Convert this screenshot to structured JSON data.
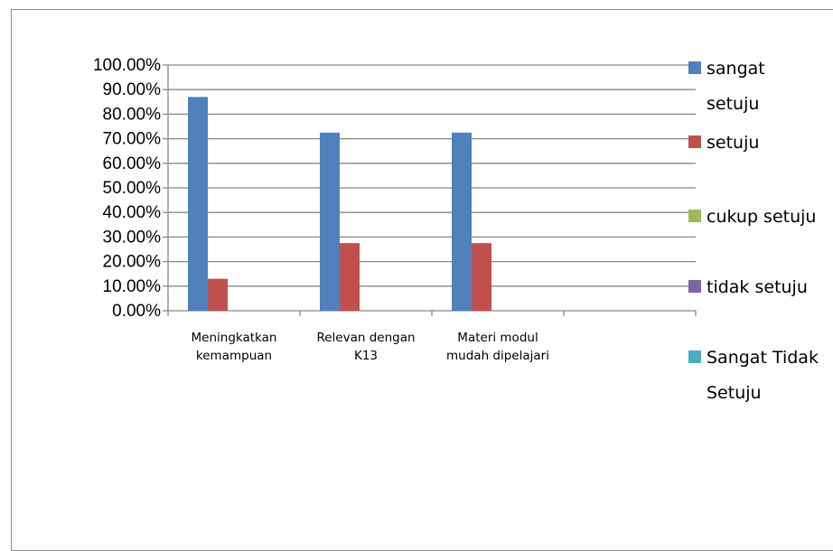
{
  "chart_data": {
    "type": "bar",
    "categories": [
      [
        "Meningkatkan",
        "kemampuan"
      ],
      [
        "Relevan dengan",
        "K13"
      ],
      [
        "Materi modul",
        "mudah dipelajari"
      ],
      [
        ""
      ]
    ],
    "series": [
      {
        "name": [
          "sangat",
          "setuju"
        ],
        "color": "#4f81bd",
        "values": [
          0.87,
          0.725,
          0.725,
          null
        ]
      },
      {
        "name": [
          "setuju"
        ],
        "color": "#c0504d",
        "values": [
          0.13,
          0.275,
          0.275,
          null
        ]
      },
      {
        "name": [
          "cukup setuju"
        ],
        "color": "#9bbb59",
        "values": [
          0,
          0,
          0,
          null
        ]
      },
      {
        "name": [
          "tidak setuju"
        ],
        "color": "#8064a2",
        "values": [
          0,
          0,
          0,
          null
        ]
      },
      {
        "name": [
          "Sangat Tidak",
          "Setuju"
        ],
        "color": "#4bacc6",
        "values": [
          0,
          0,
          0,
          null
        ]
      }
    ],
    "ylim": [
      0,
      1
    ],
    "yticks": [
      "0.00%",
      "10.00%",
      "20.00%",
      "30.00%",
      "40.00%",
      "50.00%",
      "60.00%",
      "70.00%",
      "80.00%",
      "90.00%",
      "100.00%"
    ],
    "grid": true,
    "legend_position": "right",
    "title": "",
    "xlabel": "",
    "ylabel": ""
  }
}
